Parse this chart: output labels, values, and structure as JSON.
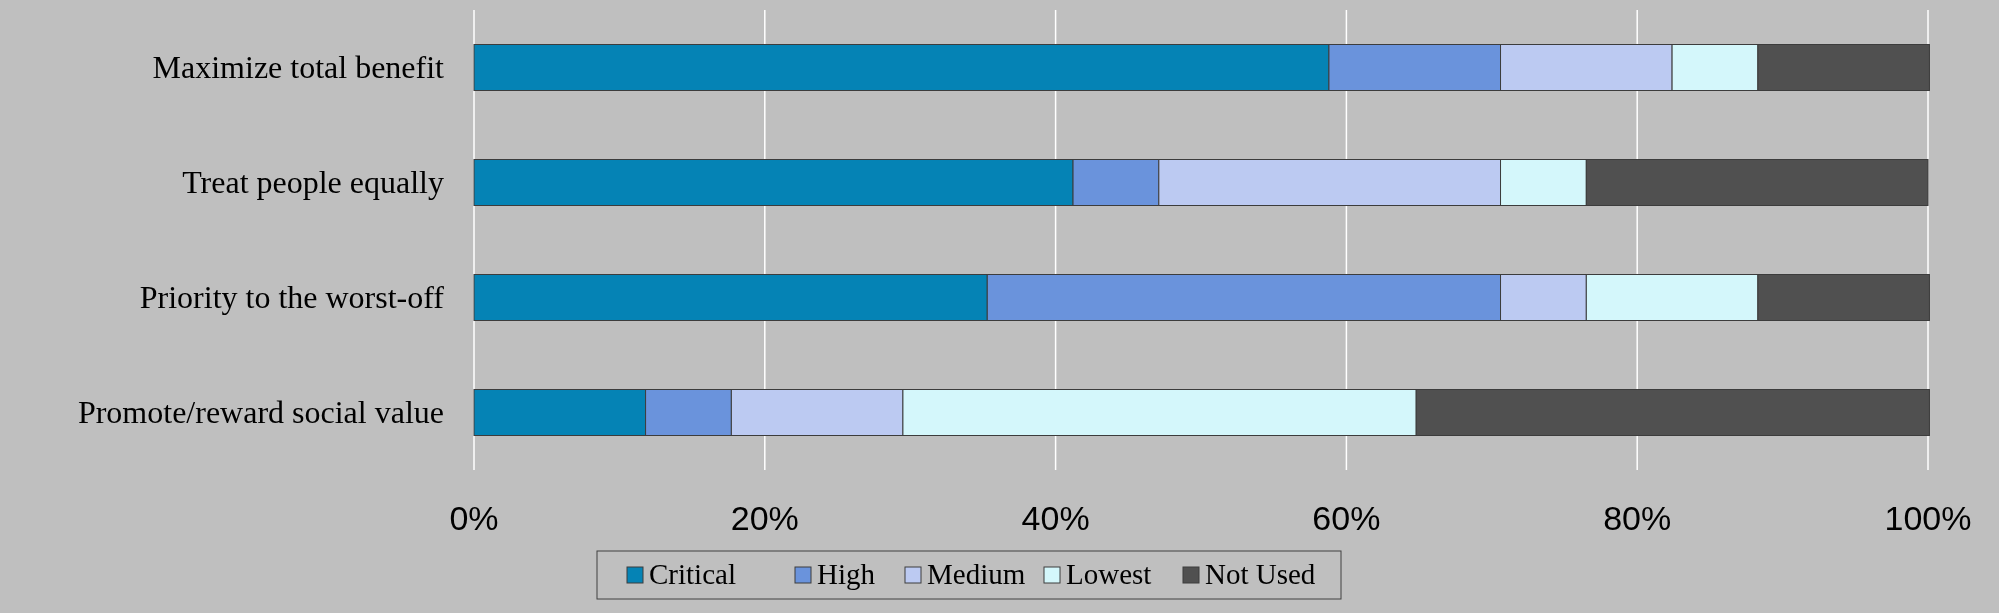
{
  "chart_data": {
    "type": "bar",
    "orientation": "horizontal",
    "stacked": true,
    "categories": [
      "Maximize total benefit",
      "Treat people equally",
      "Priority to the worst-off",
      "Promote/reward social value"
    ],
    "series": [
      {
        "name": "Critical",
        "color": "#0583b5",
        "values": [
          58.8,
          41.2,
          35.3,
          11.8
        ]
      },
      {
        "name": "High",
        "color": "#6a93dc",
        "values": [
          11.8,
          5.9,
          35.3,
          5.9
        ]
      },
      {
        "name": "Medium",
        "color": "#bccaf2",
        "values": [
          11.8,
          23.5,
          5.9,
          11.8
        ]
      },
      {
        "name": "Lowest",
        "color": "#d4f7fb",
        "values": [
          5.9,
          5.9,
          11.8,
          35.3
        ]
      },
      {
        "name": "Not Used",
        "color": "#505050",
        "values": [
          11.8,
          23.5,
          11.8,
          35.3
        ]
      }
    ],
    "xlim": [
      0,
      100
    ],
    "xticks": [
      {
        "value": 0,
        "label": "0%"
      },
      {
        "value": 20,
        "label": "20%"
      },
      {
        "value": 40,
        "label": "40%"
      },
      {
        "value": 60,
        "label": "60%"
      },
      {
        "value": 80,
        "label": "80%"
      },
      {
        "value": 100,
        "label": "100%"
      }
    ],
    "grid": "x",
    "legend": "bottom"
  }
}
